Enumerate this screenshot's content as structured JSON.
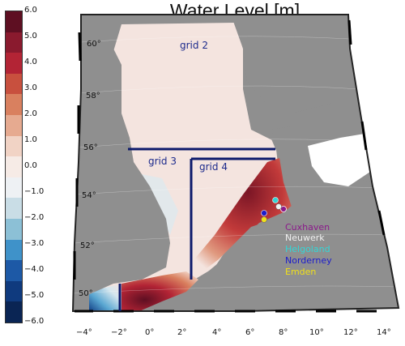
{
  "title": "Water Level [m]",
  "colorbar": {
    "ticks": [
      "6.0",
      "5.0",
      "4.0",
      "3.0",
      "2.0",
      "1.0",
      "0.0",
      "−1.0",
      "−2.0",
      "−3.0",
      "−4.0",
      "−5.0",
      "−6.0"
    ],
    "colors": [
      "#5e0f22",
      "#8a1a2e",
      "#b32435",
      "#c8503e",
      "#d9805f",
      "#e6aa90",
      "#f1d3c5",
      "#f6ebe6",
      "#eef1f4",
      "#c9dde6",
      "#8cc0d6",
      "#3f92c9",
      "#1d59a6",
      "#0f3a7e",
      "#0a2554"
    ]
  },
  "grids": [
    {
      "label": "grid 2"
    },
    {
      "label": "grid 3"
    },
    {
      "label": "grid 4"
    }
  ],
  "latitudes": [
    "60°",
    "58°",
    "56°",
    "54°",
    "52°",
    "50°"
  ],
  "longitudes": [
    "−4°",
    "−2°",
    "0°",
    "2°",
    "4°",
    "6°",
    "8°",
    "10°",
    "12°",
    "14°"
  ],
  "stations": [
    {
      "name": "Cuxhaven",
      "color": "#8b1a8b"
    },
    {
      "name": "Neuwerk",
      "color": "#f2f2f2"
    },
    {
      "name": "Helgoland",
      "color": "#33d6d6"
    },
    {
      "name": "Norderney",
      "color": "#1c1ccc"
    },
    {
      "name": "Emden",
      "color": "#f0e01a"
    }
  ],
  "colors": {
    "land": "#8f8f8f",
    "grid_box": "#0d1a6b",
    "sea": "#f4e4df"
  }
}
